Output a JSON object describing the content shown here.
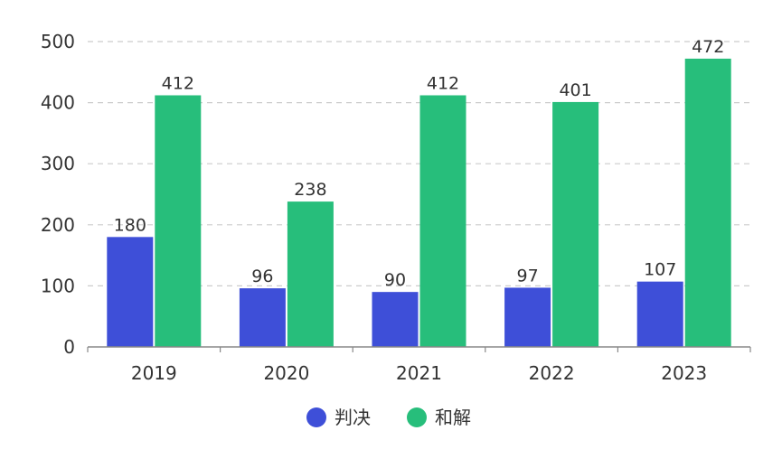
{
  "chart_data": {
    "type": "bar",
    "categories": [
      "2019",
      "2020",
      "2021",
      "2022",
      "2023"
    ],
    "series": [
      {
        "name": "判决",
        "color": "#3e4fd8",
        "values": [
          180,
          96,
          90,
          97,
          107
        ]
      },
      {
        "name": "和解",
        "color": "#27be7b",
        "values": [
          412,
          238,
          412,
          401,
          472
        ]
      }
    ],
    "yticks": [
      "0",
      "100",
      "200",
      "300",
      "400",
      "500"
    ],
    "ylim": [
      0,
      500
    ],
    "grid": true,
    "legend_position": "bottom-center",
    "title": "",
    "xlabel": "",
    "ylabel": ""
  }
}
